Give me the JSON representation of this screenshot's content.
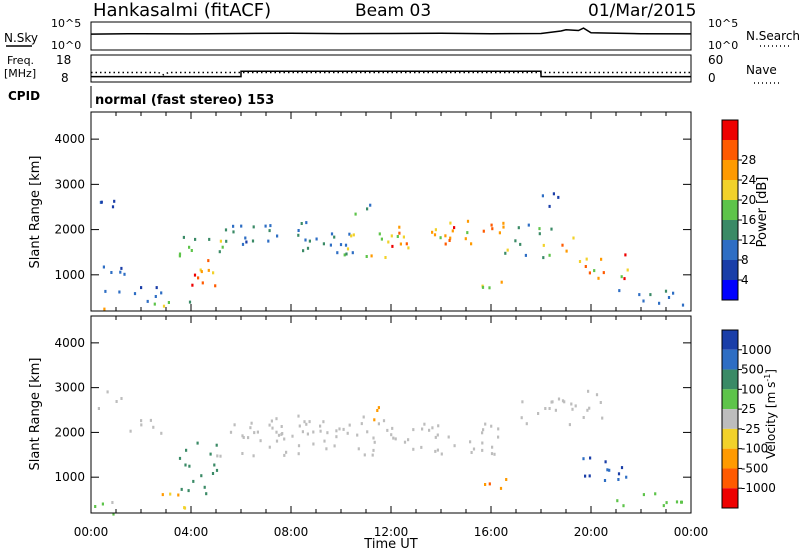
{
  "header": {
    "station": "Hankasalmi (fitACF)",
    "beam": "Beam 03",
    "date": "01/Mar/2015"
  },
  "chart_data": [
    {
      "type": "line",
      "panel": "noise",
      "left_label": "N.Sky",
      "left_ticks": [
        "10^5",
        "10^0"
      ],
      "right_label": "N.Search",
      "right_ticks": [
        "10^5",
        "10^0"
      ],
      "series": [
        {
          "name": "N.Sky",
          "x_hours": [
            0,
            2,
            4,
            6,
            8,
            10,
            12,
            14,
            16,
            18,
            18.8,
            19,
            19.5,
            19.7,
            20,
            22,
            24
          ],
          "values": [
            700,
            800,
            750,
            900,
            1000,
            850,
            900,
            950,
            800,
            900,
            2500,
            4000,
            3000,
            8000,
            1200,
            800,
            750
          ]
        }
      ]
    },
    {
      "type": "line",
      "panel": "frequency",
      "left_label": "Freq.",
      "left_unit": "[MHz]",
      "left_ticks": [
        "18",
        "8"
      ],
      "right_label": "Nave",
      "right_ticks": [
        "60",
        "0"
      ],
      "series": [
        {
          "name": "Freq.",
          "x_hours": [
            0,
            6,
            6,
            18,
            18,
            24
          ],
          "values": [
            10,
            10,
            12,
            12,
            10,
            10
          ]
        },
        {
          "name": "Nave",
          "x_hours": [
            0,
            2.7,
            2.9,
            3.1,
            24
          ],
          "values": [
            21,
            21,
            16,
            21,
            21
          ]
        }
      ]
    },
    {
      "type": "table",
      "panel": "cpid",
      "label": "CPID",
      "value": "normal (fast stereo) 153"
    },
    {
      "type": "heatmap",
      "panel": "power",
      "ylabel": "Slant Range [km]",
      "yticks": [
        "1000",
        "2000",
        "3000",
        "4000"
      ],
      "ylim": [
        200,
        4600
      ],
      "colorbar": {
        "label": "Power [dB]",
        "ticks": [
          "4",
          "8",
          "12",
          "16",
          "20",
          "24",
          "28"
        ],
        "colors": [
          "#0000ff",
          "#1a3ea8",
          "#2e6ec4",
          "#3a8a66",
          "#5ec44a",
          "#f2d22a",
          "#ff9a00",
          "#ff5a00",
          "#ee0000"
        ]
      },
      "scatter_regions": [
        {
          "x": [
            0.1,
            0.7
          ],
          "y": [
            200,
            450
          ],
          "value": 22
        },
        {
          "x": [
            0.3,
            1.3
          ],
          "y": [
            500,
            1300
          ],
          "value": 8
        },
        {
          "x": [
            0.1,
            1.0
          ],
          "y": [
            2450,
            2950
          ],
          "value": 6
        },
        {
          "x": [
            1.4,
            2.8
          ],
          "y": [
            400,
            900
          ],
          "value": 8
        },
        {
          "x": [
            2.5,
            4.0
          ],
          "y": [
            300,
            600
          ],
          "value": 18
        },
        {
          "x": [
            3.3,
            5.0
          ],
          "y": [
            650,
            1350
          ],
          "value": 26
        },
        {
          "x": [
            3.5,
            5.5
          ],
          "y": [
            1300,
            1900
          ],
          "value": 14
        },
        {
          "x": [
            5.0,
            8.0
          ],
          "y": [
            1700,
            2300
          ],
          "value": 9
        },
        {
          "x": [
            7.5,
            10.5
          ],
          "y": [
            1500,
            2200
          ],
          "value": 10
        },
        {
          "x": [
            9.5,
            12.5
          ],
          "y": [
            1400,
            2000
          ],
          "value": 18
        },
        {
          "x": [
            10.5,
            11.5
          ],
          "y": [
            2300,
            2600
          ],
          "value": 12
        },
        {
          "x": [
            12.0,
            14.5
          ],
          "y": [
            1600,
            2200
          ],
          "value": 24
        },
        {
          "x": [
            14.0,
            16.5
          ],
          "y": [
            1700,
            2300
          ],
          "value": 21
        },
        {
          "x": [
            15.5,
            17.0
          ],
          "y": [
            700,
            1000
          ],
          "value": 22
        },
        {
          "x": [
            16.5,
            18.5
          ],
          "y": [
            1400,
            2200
          ],
          "value": 14
        },
        {
          "x": [
            18.0,
            19.0
          ],
          "y": [
            2500,
            3000
          ],
          "value": 6
        },
        {
          "x": [
            18.5,
            19.5
          ],
          "y": [
            1500,
            1900
          ],
          "value": 22
        },
        {
          "x": [
            19.5,
            21.5
          ],
          "y": [
            800,
            1500
          ],
          "value": 22
        },
        {
          "x": [
            21.0,
            23.8
          ],
          "y": [
            300,
            700
          ],
          "value": 10
        }
      ]
    },
    {
      "type": "heatmap",
      "panel": "velocity",
      "ylabel": "Slant Range [km]",
      "yticks": [
        "1000",
        "2000",
        "3000",
        "4000"
      ],
      "ylim": [
        200,
        4600
      ],
      "xlabel": "Time UT",
      "xticks": [
        "00:00",
        "04:00",
        "08:00",
        "12:00",
        "16:00",
        "20:00",
        "00:00"
      ],
      "xlim_hours": [
        0,
        24
      ],
      "colorbar": {
        "label_main": "Velocity",
        "label_unit": "[m s",
        "label_exp": "-1",
        "label_close": "]",
        "ticks": [
          "1000",
          "500",
          "100",
          "25",
          "-25",
          "-100",
          "-500",
          "-1000"
        ],
        "colors": [
          "#1a3ea8",
          "#2e6ec4",
          "#3a8a66",
          "#5ec44a",
          "#bdbdbd",
          "#f2d22a",
          "#ff9a00",
          "#ff5a00",
          "#ee0000"
        ]
      },
      "scatter_regions": [
        {
          "x": [
            0.1,
            1.0
          ],
          "y": [
            200,
            700
          ],
          "value": 30
        },
        {
          "x": [
            0.2,
            1.2
          ],
          "y": [
            2500,
            3000
          ],
          "value": 0
        },
        {
          "x": [
            1.5,
            3.0
          ],
          "y": [
            1900,
            2400
          ],
          "value": 0
        },
        {
          "x": [
            2.5,
            4.0
          ],
          "y": [
            300,
            700
          ],
          "value": -60
        },
        {
          "x": [
            3.3,
            5.0
          ],
          "y": [
            650,
            1350
          ],
          "value": 150
        },
        {
          "x": [
            3.5,
            5.0
          ],
          "y": [
            1300,
            1800
          ],
          "value": 80
        },
        {
          "x": [
            5.0,
            17.0
          ],
          "y": [
            1500,
            2300
          ],
          "value": 0
        },
        {
          "x": [
            7.0,
            12.0
          ],
          "y": [
            1900,
            2400
          ],
          "value": 0
        },
        {
          "x": [
            10.5,
            11.5
          ],
          "y": [
            2300,
            2600
          ],
          "value": -150
        },
        {
          "x": [
            15.5,
            17.0
          ],
          "y": [
            700,
            1000
          ],
          "value": -300
        },
        {
          "x": [
            17.0,
            20.5
          ],
          "y": [
            2200,
            3000
          ],
          "value": 0
        },
        {
          "x": [
            19.5,
            21.5
          ],
          "y": [
            800,
            1500
          ],
          "value": 700
        },
        {
          "x": [
            21.0,
            23.8
          ],
          "y": [
            300,
            700
          ],
          "value": 40
        }
      ]
    }
  ]
}
